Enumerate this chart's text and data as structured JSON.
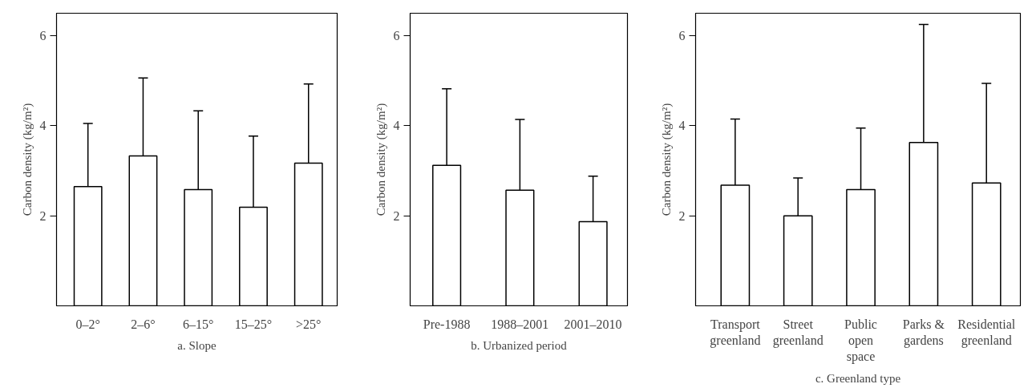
{
  "chart_data": [
    {
      "type": "bar",
      "title": "a. Slope",
      "ylabel": "Carbon density (kg/m²)",
      "categories": [
        "0–2°",
        "2–6°",
        "6–15°",
        "15–25°",
        ">25°"
      ],
      "color": "#ffffff",
      "values": [
        2.65,
        3.33,
        2.58,
        2.19,
        3.17
      ],
      "errors": [
        [
          2.65,
          4.05
        ],
        [
          3.33,
          5.06
        ],
        [
          2.58,
          4.33
        ],
        [
          2.19,
          3.77
        ],
        [
          3.17,
          4.93
        ]
      ],
      "ylim": [
        0,
        6.5
      ],
      "yticks": [
        2,
        4,
        6
      ]
    },
    {
      "type": "bar",
      "title": "b. Urbanized period",
      "ylabel": "Carbon density (kg/m²)",
      "categories": [
        "Pre-1988",
        "1988–2001",
        "2001–2010"
      ],
      "color": "#ffffff",
      "values": [
        3.12,
        2.57,
        1.87
      ],
      "errors": [
        [
          3.12,
          4.82
        ],
        [
          2.57,
          4.14
        ],
        [
          1.87,
          2.88
        ]
      ],
      "ylim": [
        0,
        6.5
      ],
      "yticks": [
        2,
        4,
        6
      ]
    },
    {
      "type": "bar",
      "title": "c. Greenland type",
      "ylabel": "Carbon density (kg/m²)",
      "categories": [
        "Transport greenland",
        "Street greenland",
        "Public open space",
        "Parks & gardens",
        "Residential greenland"
      ],
      "color": "#ffffff",
      "values": [
        2.68,
        2.0,
        2.58,
        3.63,
        2.73
      ],
      "errors": [
        [
          2.68,
          4.15
        ],
        [
          2.0,
          2.84
        ],
        [
          2.58,
          3.95
        ],
        [
          3.63,
          6.25
        ],
        [
          2.73,
          4.94
        ]
      ],
      "ylim": [
        0,
        6.5
      ],
      "yticks": [
        2,
        4,
        6
      ]
    }
  ]
}
